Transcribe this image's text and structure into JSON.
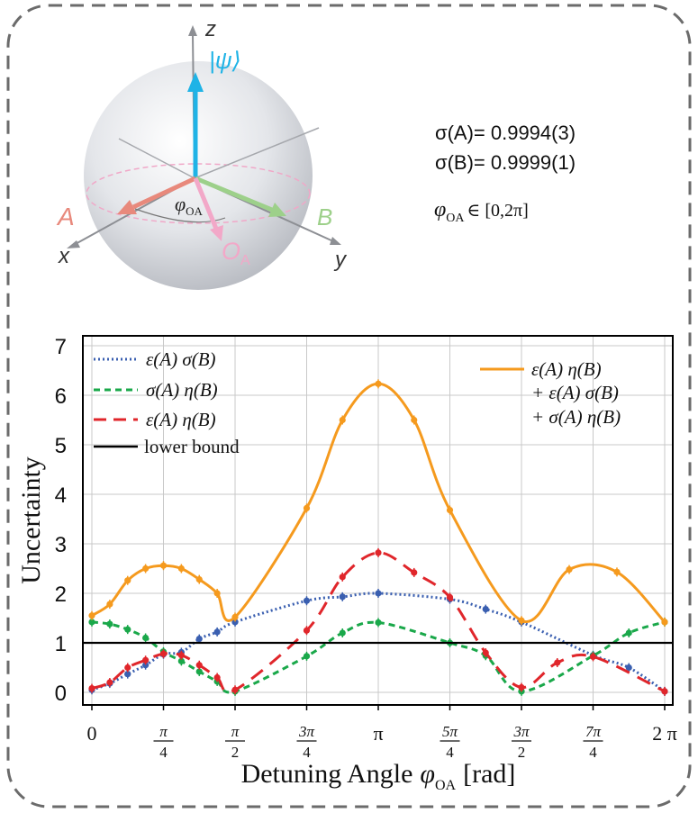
{
  "colors": {
    "border": "#6b6b6b",
    "psi": "#1fb3e6",
    "a_vec": "#e8897c",
    "b_vec": "#9dd08a",
    "oa_vec": "#f2a8c8",
    "blue_series": "#3a5fb0",
    "green_series": "#1aa84a",
    "red_series": "#e0262b",
    "orange_series": "#f59a1e",
    "bound": "#000000"
  },
  "bloch": {
    "axis_z": "z",
    "axis_x": "x",
    "axis_y": "y",
    "state_label": "|ψ⟩",
    "vec_a": "A",
    "vec_b": "B",
    "vec_oa": "O",
    "vec_oa_sub": "A",
    "angle_label": "φ",
    "angle_sub": "OA"
  },
  "stats": {
    "sigma_a": "σ(A)= 0.9994(3)",
    "sigma_b": "σ(B)= 0.9999(1)",
    "phi_symbol": "φ",
    "phi_sub": "OA",
    "phi_range": "∈ [0,2π]"
  },
  "chart_data": {
    "type": "line",
    "ylabel": "Uncertainty",
    "xlabel": "Detuning Angle",
    "xlabel_symbol": "φ",
    "xlabel_sub": "OA",
    "xlabel_unit": "[rad]",
    "ylim": [
      0,
      7
    ],
    "yticks": [
      0,
      1,
      2,
      3,
      4,
      5,
      6,
      7
    ],
    "xticks": [
      {
        "x": 0,
        "num": "0",
        "den": ""
      },
      {
        "x": 0.25,
        "num": "π",
        "den": "4"
      },
      {
        "x": 0.5,
        "num": "π",
        "den": "2"
      },
      {
        "x": 0.75,
        "num": "3π",
        "den": "4"
      },
      {
        "x": 1,
        "num": "π",
        "den": ""
      },
      {
        "x": 1.25,
        "num": "5π",
        "den": "4"
      },
      {
        "x": 1.5,
        "num": "3π",
        "den": "2"
      },
      {
        "x": 1.75,
        "num": "7π",
        "den": "4"
      },
      {
        "x": 2,
        "num": "2 π",
        "den": ""
      }
    ],
    "x_unit": "multiples of π",
    "grid": true,
    "lower_bound": 1,
    "legend_left": [
      "ε(A) σ(B)",
      "σ(A) η(B)",
      "ε(A) η(B)",
      "lower bound"
    ],
    "legend_right": [
      "ε(A) η(B)",
      "+ ε(A) σ(B)",
      "+ σ(A) η(B)"
    ],
    "series": [
      {
        "name": "ε(A) σ(B)",
        "style": "dotted",
        "color": "#3a5fb0",
        "points": [
          [
            0,
            0.05
          ],
          [
            0.0625,
            0.18
          ],
          [
            0.125,
            0.37
          ],
          [
            0.1875,
            0.55
          ],
          [
            0.25,
            0.77
          ],
          [
            0.3125,
            0.81
          ],
          [
            0.375,
            1.08
          ],
          [
            0.4375,
            1.22
          ],
          [
            0.5,
            1.42
          ],
          [
            0.75,
            1.85
          ],
          [
            0.875,
            1.93
          ],
          [
            1,
            2.0
          ],
          [
            1.25,
            1.88
          ],
          [
            1.375,
            1.68
          ],
          [
            1.5,
            1.42
          ],
          [
            1.75,
            0.75
          ],
          [
            1.875,
            0.5
          ],
          [
            2,
            0.02
          ]
        ]
      },
      {
        "name": "σ(A) η(B)",
        "style": "short-dash",
        "color": "#1aa84a",
        "points": [
          [
            0,
            1.42
          ],
          [
            0.0625,
            1.38
          ],
          [
            0.125,
            1.27
          ],
          [
            0.1875,
            1.1
          ],
          [
            0.25,
            0.82
          ],
          [
            0.3125,
            0.63
          ],
          [
            0.375,
            0.42
          ],
          [
            0.4375,
            0.22
          ],
          [
            0.5,
            0.02
          ],
          [
            0.75,
            0.73
          ],
          [
            0.875,
            1.2
          ],
          [
            1,
            1.41
          ],
          [
            1.25,
            1.0
          ],
          [
            1.375,
            0.74
          ],
          [
            1.5,
            0.02
          ],
          [
            1.75,
            0.74
          ],
          [
            1.875,
            1.2
          ],
          [
            2,
            1.42
          ]
        ]
      },
      {
        "name": "ε(A) η(B)",
        "style": "long-dash",
        "color": "#e0262b",
        "points": [
          [
            0,
            0.08
          ],
          [
            0.0625,
            0.2
          ],
          [
            0.125,
            0.5
          ],
          [
            0.1875,
            0.65
          ],
          [
            0.25,
            0.78
          ],
          [
            0.3125,
            0.75
          ],
          [
            0.375,
            0.55
          ],
          [
            0.4375,
            0.3
          ],
          [
            0.5,
            0.05
          ],
          [
            0.75,
            1.25
          ],
          [
            0.875,
            2.33
          ],
          [
            1,
            2.82
          ],
          [
            1.125,
            2.42
          ],
          [
            1.25,
            1.92
          ],
          [
            1.375,
            0.8
          ],
          [
            1.5,
            0.1
          ],
          [
            1.625,
            0.6
          ],
          [
            1.75,
            0.72
          ],
          [
            2,
            0.02
          ]
        ]
      },
      {
        "name": "ε(A) η(B) + ε(A) σ(B) + σ(A) η(B)",
        "style": "solid",
        "color": "#f59a1e",
        "points": [
          [
            0,
            1.55
          ],
          [
            0.0625,
            1.78
          ],
          [
            0.125,
            2.26
          ],
          [
            0.1875,
            2.5
          ],
          [
            0.25,
            2.56
          ],
          [
            0.3125,
            2.5
          ],
          [
            0.375,
            2.28
          ],
          [
            0.4375,
            2.0
          ],
          [
            0.5,
            1.52
          ],
          [
            0.75,
            3.72
          ],
          [
            0.875,
            5.5
          ],
          [
            1,
            6.23
          ],
          [
            1.125,
            5.5
          ],
          [
            1.25,
            3.68
          ],
          [
            1.5,
            1.45
          ],
          [
            1.6667,
            2.48
          ],
          [
            1.8333,
            2.43
          ],
          [
            2,
            1.42
          ]
        ]
      }
    ]
  }
}
